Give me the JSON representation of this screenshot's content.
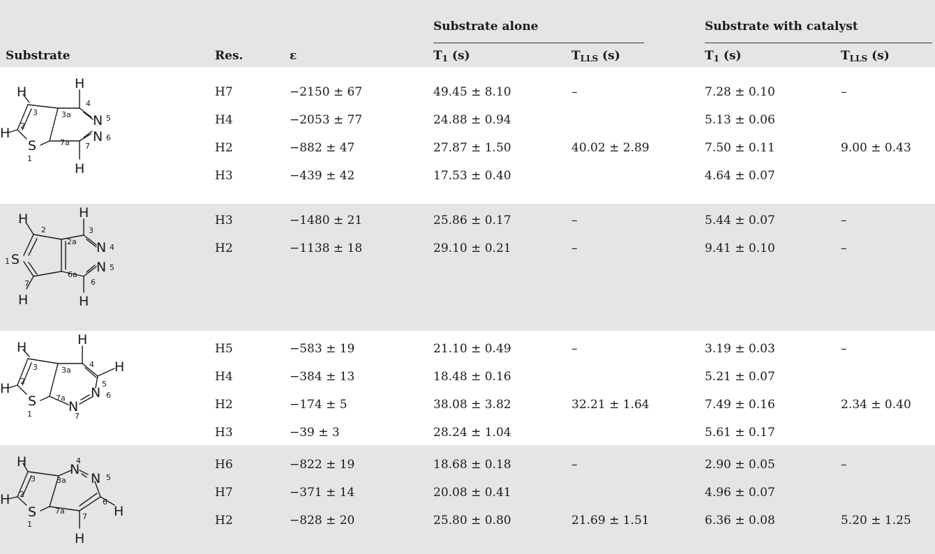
{
  "header": {
    "group_alone": "Substrate alone",
    "group_catalyst": "Substrate with catalyst",
    "col_substrate": "Substrate",
    "col_res": "Res.",
    "col_eps": "ε",
    "t1_main": "T",
    "t1_sub": "1",
    "t1_unit": " (s)",
    "tlls_main": "T",
    "tlls_sub": "LLS",
    "tlls_unit": " (s)"
  },
  "blocks": [
    {
      "rows": [
        {
          "res": "H7",
          "eps": "−2150 ± 67",
          "t1_alone": "49.45 ± 8.10",
          "tlls_alone": "–",
          "t1_cat": "7.28 ± 0.10",
          "tlls_cat": "–"
        },
        {
          "res": "H4",
          "eps": "−2053 ± 77",
          "t1_alone": "24.88 ± 0.94",
          "tlls_alone": "",
          "t1_cat": "5.13 ± 0.06",
          "tlls_cat": ""
        },
        {
          "res": "H2",
          "eps": "−882 ± 47",
          "t1_alone": "27.87 ± 1.50",
          "tlls_alone": "40.02 ± 2.89",
          "t1_cat": "7.50 ± 0.11",
          "tlls_cat": "9.00 ± 0.43"
        },
        {
          "res": "H3",
          "eps": "−439 ± 42",
          "t1_alone": "17.53 ± 0.40",
          "tlls_alone": "",
          "t1_cat": "4.64 ± 0.07",
          "tlls_cat": ""
        }
      ]
    },
    {
      "rows": [
        {
          "res": "H3",
          "eps": "−1480 ± 21",
          "t1_alone": "25.86 ± 0.17",
          "tlls_alone": "–",
          "t1_cat": "5.44 ± 0.07",
          "tlls_cat": "–"
        },
        {
          "res": "H2",
          "eps": "−1138 ± 18",
          "t1_alone": "29.10 ± 0.21",
          "tlls_alone": "–",
          "t1_cat": "9.41 ± 0.10",
          "tlls_cat": "–"
        }
      ]
    },
    {
      "rows": [
        {
          "res": "H5",
          "eps": "−583 ± 19",
          "t1_alone": "21.10 ± 0.49",
          "tlls_alone": "–",
          "t1_cat": "3.19 ± 0.03",
          "tlls_cat": "–"
        },
        {
          "res": "H4",
          "eps": "−384 ± 13",
          "t1_alone": "18.48 ± 0.16",
          "tlls_alone": "",
          "t1_cat": "5.21 ± 0.07",
          "tlls_cat": ""
        },
        {
          "res": "H2",
          "eps": "−174 ± 5",
          "t1_alone": "38.08 ± 3.82",
          "tlls_alone": "32.21 ± 1.64",
          "t1_cat": "7.49 ± 0.16",
          "tlls_cat": "2.34 ± 0.40"
        },
        {
          "res": "H3",
          "eps": "−39 ± 3",
          "t1_alone": "28.24 ± 1.04",
          "tlls_alone": "",
          "t1_cat": "5.61 ± 0.17",
          "tlls_cat": ""
        }
      ]
    },
    {
      "rows": [
        {
          "res": "H6",
          "eps": "−822 ± 19",
          "t1_alone": "18.68 ± 0.18",
          "tlls_alone": "–",
          "t1_cat": "2.90 ± 0.05",
          "tlls_cat": "–"
        },
        {
          "res": "H7",
          "eps": "−371 ± 14",
          "t1_alone": "20.08 ± 0.41",
          "tlls_alone": "",
          "t1_cat": "4.96 ± 0.07",
          "tlls_cat": ""
        },
        {
          "res": "H2",
          "eps": "−828 ± 20",
          "t1_alone": "25.80 ± 0.80",
          "tlls_alone": "21.69 ± 1.51",
          "t1_cat": "6.36 ± 0.08",
          "tlls_cat": "5.20 ± 1.25"
        }
      ]
    }
  ],
  "molecules": [
    {
      "atoms": {
        "H_top_left": "H",
        "H_top_right": "H",
        "H_left": "H",
        "S": "S",
        "N5": "N",
        "N6": "N",
        "H_bottom": "H"
      },
      "numbers": {
        "n3": "3",
        "n3a": "3a",
        "n4": "4",
        "n5": "5",
        "n2": "2",
        "n6": "6",
        "n7a": "7a",
        "n7": "7",
        "n1": "1"
      }
    },
    {
      "atoms": {
        "H_top_left": "H",
        "H_top_right": "H",
        "S": "S",
        "N4": "N",
        "N5": "N",
        "H_bottom_left": "H",
        "H_bottom_right": "H"
      },
      "numbers": {
        "n2": "2",
        "n3": "3",
        "n2a": "2a",
        "n1": "1",
        "n4": "4",
        "n5": "5",
        "n7": "7",
        "n6a": "6a",
        "n6": "6"
      }
    },
    {
      "atoms": {
        "H_top_left": "H",
        "H_top": "H",
        "H_right": "H",
        "H_left": "H",
        "S": "S",
        "N6": "N",
        "N7": "N"
      },
      "numbers": {
        "n3": "3",
        "n3a": "3a",
        "n4": "4",
        "n5": "5",
        "n2": "2",
        "n6": "6",
        "n7a": "7a",
        "n1": "1",
        "n7": "7"
      }
    },
    {
      "atoms": {
        "H_top_left": "H",
        "N4": "N",
        "N5": "N",
        "H_left": "H",
        "S": "S",
        "H_right": "H",
        "H_bottom": "H"
      },
      "numbers": {
        "n4": "4",
        "n3": "3",
        "n3a": "3a",
        "n5": "5",
        "n2": "2",
        "n6": "6",
        "n7a": "7a",
        "n7": "7",
        "n1": "1"
      }
    }
  ]
}
